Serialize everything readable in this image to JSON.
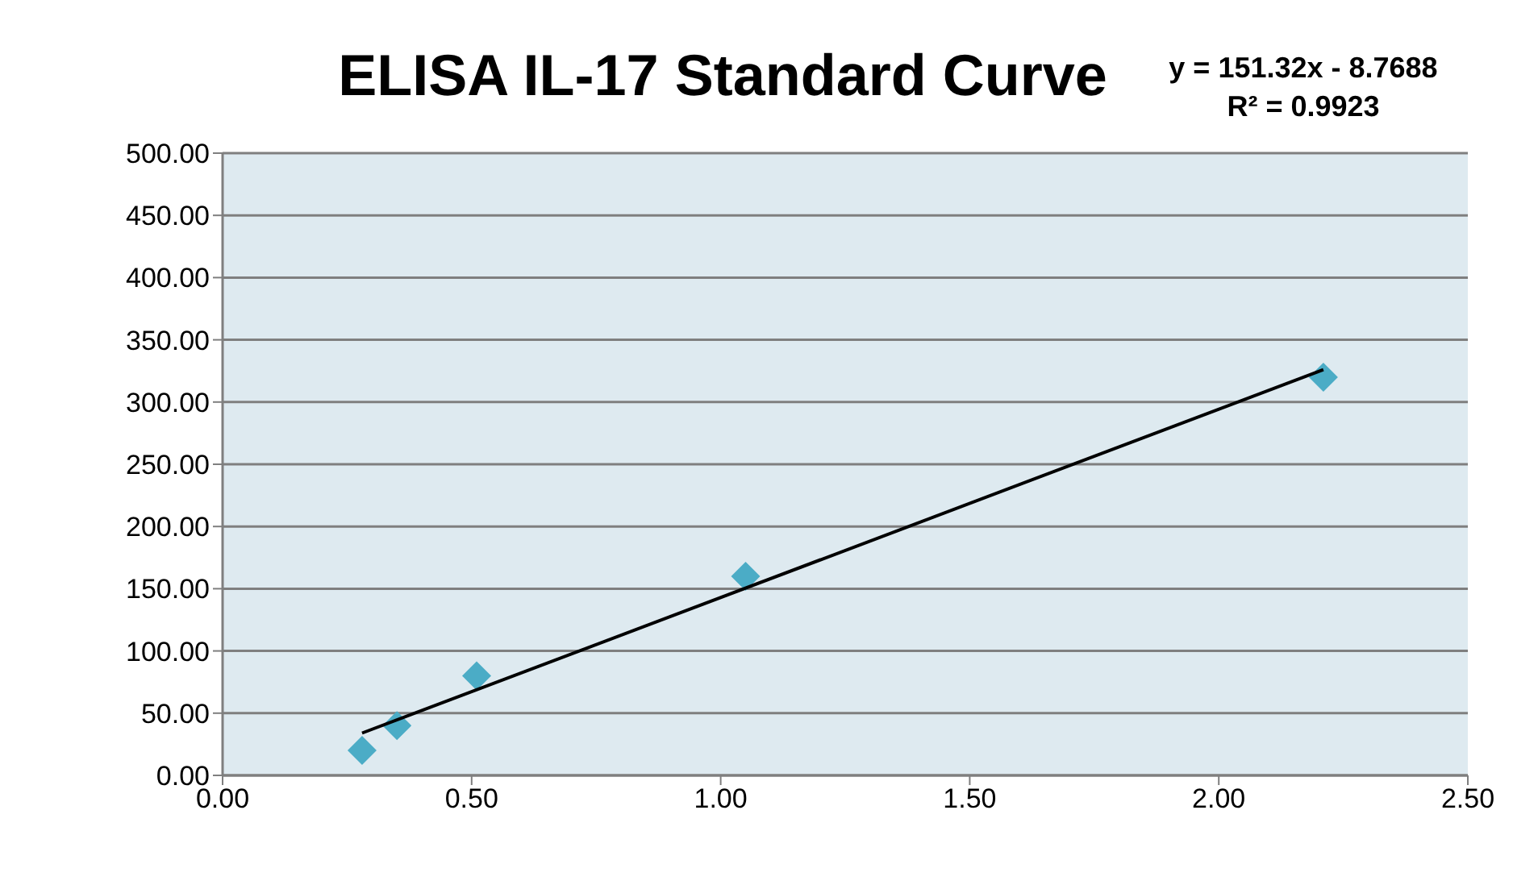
{
  "chart_data": {
    "type": "scatter",
    "title": "ELISA IL-17 Standard Curve",
    "annotations": [
      "y = 151.32x - 8.7688",
      "R² = 0.9923"
    ],
    "series": [
      {
        "color": "#4bacc6",
        "marker": "diamond",
        "x": [
          0.28,
          0.35,
          0.51,
          1.05,
          2.21
        ],
        "values": [
          20,
          40,
          80,
          160,
          320
        ]
      },
      {
        "type": "line",
        "color": "#000000",
        "x": [
          0.28,
          2.21
        ],
        "values": [
          34,
          326
        ]
      }
    ],
    "grid": "y",
    "legend": false,
    "xlim": [
      0,
      2.5
    ],
    "xticks": [
      {
        "value": 0,
        "label": "0.00"
      },
      {
        "value": 0.5,
        "label": "0.50"
      },
      {
        "value": 1,
        "label": "1.00"
      },
      {
        "value": 1.5,
        "label": "1.50"
      },
      {
        "value": 2,
        "label": "2.00"
      },
      {
        "value": 2.5,
        "label": "2.50"
      }
    ],
    "ylim": [
      0,
      500
    ],
    "yticks": [
      {
        "value": 0,
        "label": "0.00"
      },
      {
        "value": 50,
        "label": "50.00"
      },
      {
        "value": 100,
        "label": "100.00"
      },
      {
        "value": 150,
        "label": "150.00"
      },
      {
        "value": 200,
        "label": "200.00"
      },
      {
        "value": 250,
        "label": "250.00"
      },
      {
        "value": 300,
        "label": "300.00"
      },
      {
        "value": 350,
        "label": "350.00"
      },
      {
        "value": 400,
        "label": "400.00"
      },
      {
        "value": 450,
        "label": "450.00"
      },
      {
        "value": 500,
        "label": "500.00"
      }
    ]
  }
}
